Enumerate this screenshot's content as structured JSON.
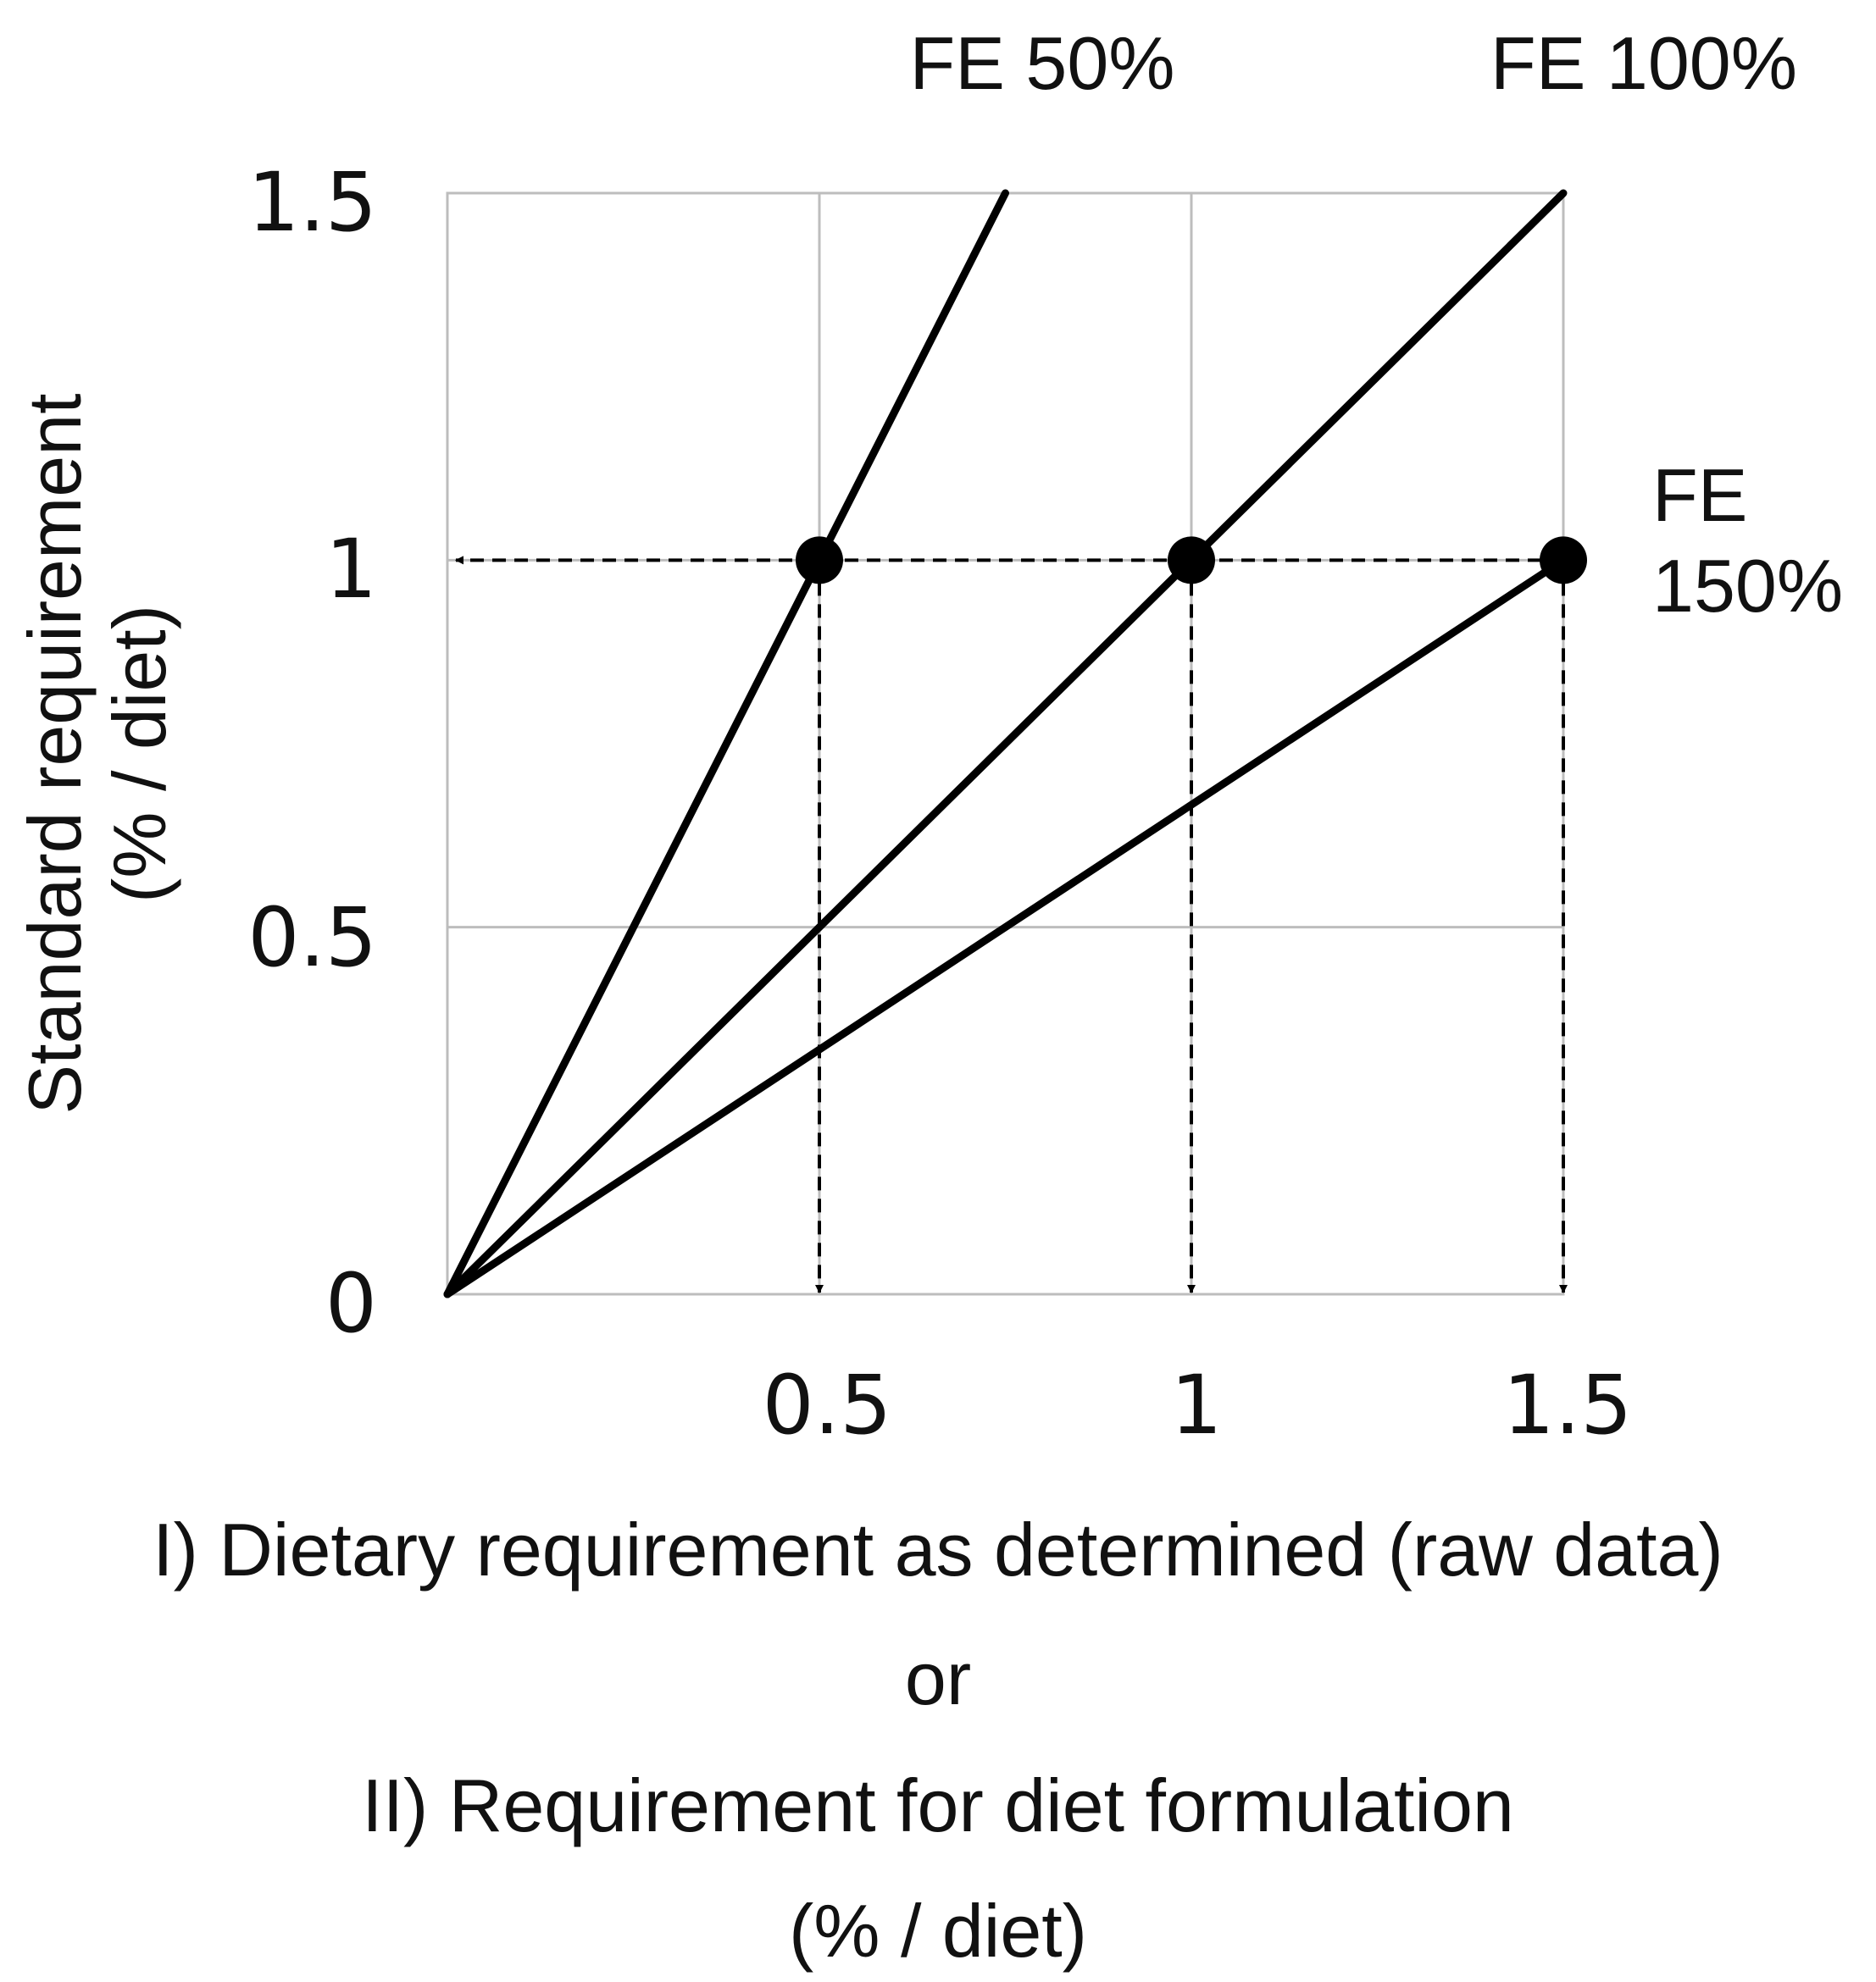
{
  "chart_data": {
    "type": "line",
    "title": "",
    "ylabel_line1": "Standard requirement",
    "ylabel_line2": "(% / diet)",
    "xlabel_lines": [
      "I) Dietary requirement as determined (raw data)",
      "or",
      "II) Requirement for diet formulation",
      "(% / diet)"
    ],
    "xlim": [
      0,
      1.5
    ],
    "ylim": [
      0,
      1.5
    ],
    "x_ticks": [
      "0.5",
      "1",
      "1.5"
    ],
    "y_ticks": [
      "0",
      "0.5",
      "1",
      "1.5"
    ],
    "x_tick_values": [
      0.5,
      1,
      1.5
    ],
    "y_tick_values": [
      0,
      0.5,
      1,
      1.5
    ],
    "grid": true,
    "series": [
      {
        "name": "FE 50%",
        "x": [
          0,
          0.75
        ],
        "y": [
          0,
          1.5
        ]
      },
      {
        "name": "FE 100%",
        "x": [
          0,
          1.5
        ],
        "y": [
          0,
          1.5
        ]
      },
      {
        "name": "FE 150%",
        "x": [
          0,
          1.5
        ],
        "y": [
          0,
          1.0
        ]
      }
    ],
    "series_labels": {
      "fe50": "FE 50%",
      "fe100": "FE 100%",
      "fe150_line1": "FE",
      "fe150_line2": "150%"
    },
    "points": [
      {
        "x": 0.5,
        "y": 1
      },
      {
        "x": 1,
        "y": 1
      },
      {
        "x": 1.5,
        "y": 1
      }
    ],
    "reference_y": 1
  }
}
